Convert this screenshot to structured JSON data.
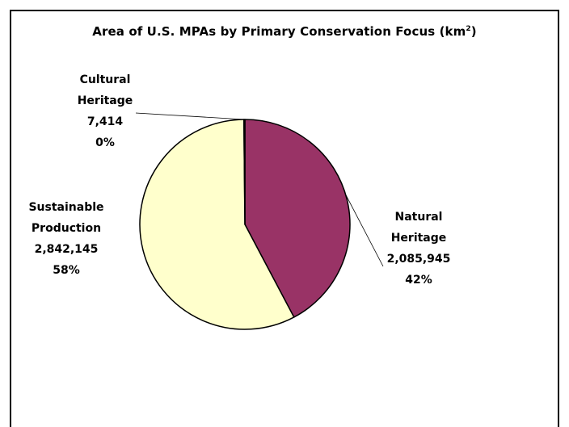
{
  "chart_data": {
    "type": "pie",
    "title_main": "Area of U.S. MPAs by Primary Conservation Focus (km",
    "title_sup": "2",
    "title_end": ")",
    "start_angle_deg": 0,
    "direction": "clockwise",
    "slices": [
      {
        "label_line1": "Natural",
        "label_line2": "Heritage",
        "value": 2085945,
        "value_text": "2,085,945",
        "percent_text": "42%",
        "color": "#993366"
      },
      {
        "label_line1": "Sustainable",
        "label_line2": "Production",
        "value": 2842145,
        "value_text": "2,842,145",
        "percent_text": "58%",
        "color": "#ffffcc"
      },
      {
        "label_line1": "Cultural",
        "label_line2": "Heritage",
        "value": 7414,
        "value_text": "7,414",
        "percent_text": "0%",
        "color": "#ffffcc"
      }
    ]
  }
}
